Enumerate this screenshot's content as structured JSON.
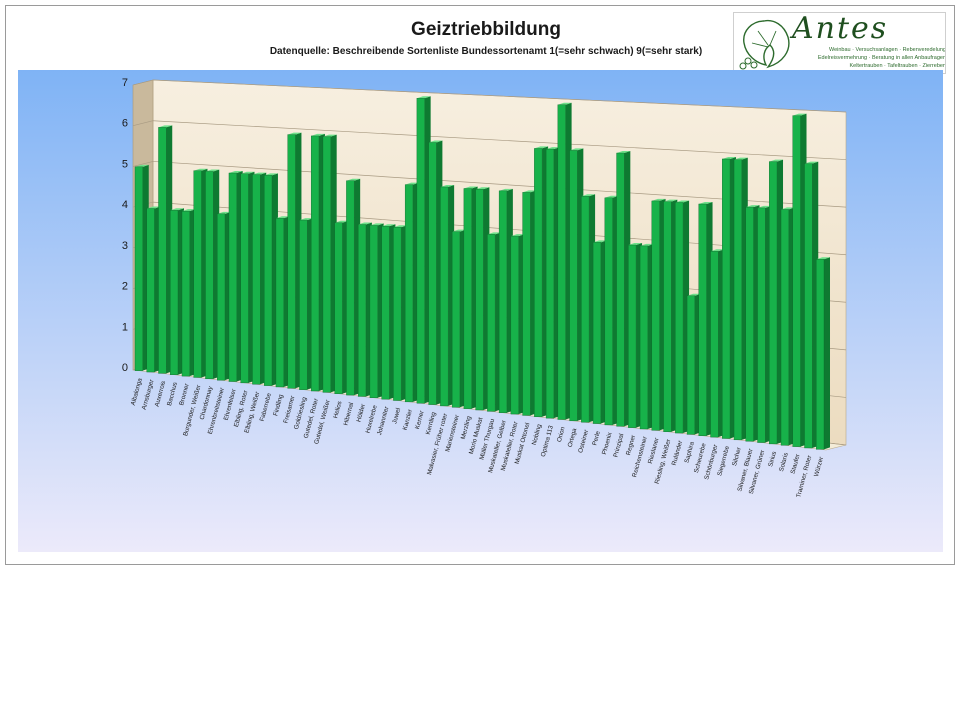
{
  "title": "Geiztriebbildung",
  "subtitle": "Datenquelle: Beschreibende Sortenliste Bundessortenamt 1(=sehr schwach) 9(=sehr stark)",
  "logo": {
    "name": "Antes",
    "line1": "Weinbau · Versuchsanlagen · Rebenveredelung",
    "line2": "Edelreisvermehrung · Beratung in allen Anbaufragen",
    "line3": "Keltertrauben · Tafeltrauben · Zierreben"
  },
  "colors": {
    "bar_front": "#17b24a",
    "bar_side": "#0e7a31",
    "bar_top": "#6ee08a",
    "wall": "#ecdcc0",
    "floor": "#f4ecd8",
    "bg_top": "#7fb3f5",
    "bg_bottom": "#eceafa"
  },
  "chart_data": {
    "type": "bar",
    "title": "Geiztriebbildung",
    "subtitle": "Datenquelle: Beschreibende Sortenliste Bundessortenamt 1(=sehr schwach) 9(=sehr stark)",
    "ylim": [
      0,
      7
    ],
    "yticks": [
      "0",
      "1",
      "2",
      "3",
      "4",
      "5",
      "6",
      "7"
    ],
    "grid": true,
    "legend": "none",
    "categories": [
      "Albalonga",
      "Arnsburger",
      "Auxerrois",
      "Bacchus",
      "Bronner",
      "Burgunder, Weißer",
      "Chardonnay",
      "Ehrenbreitsteiner",
      "Ehrenfelser",
      "Elbling, Roter",
      "Elbling, Weißer",
      "Faberrebe",
      "Findling",
      "Freisamer",
      "Goldriesling",
      "Gutedel, Roter",
      "Gutedel, Weißer",
      "Helios",
      "Hibernal",
      "Hölder",
      "Huxelrebe",
      "Johanniter",
      "Juwel",
      "Kanzler",
      "Kerner",
      "Kernling",
      "Malvasier, Früher roter",
      "Mariensteiner",
      "Merzling",
      "Morio Muskat",
      "Müller Thurgau",
      "Muskateller, Gelber",
      "Muskateller, Roter",
      "Muskat Ottonel",
      "Nobling",
      "Optima 113",
      "Orion",
      "Ortega",
      "Osteiner",
      "Perle",
      "Phoenix",
      "Prinzipal",
      "Regner",
      "Reichensteiner",
      "Rieslaner",
      "Riesling, Weißer",
      "Ruländer",
      "Saphira",
      "Scheurebe",
      "Schönburger",
      "Siegerrebe",
      "Silcher",
      "Silvaner, Blauer",
      "Silvaner, Grüner",
      "Sirius",
      "Solaris",
      "Staufer",
      "Traminer, Roter",
      "Würzer"
    ],
    "values": [
      5,
      4,
      6,
      4,
      4,
      5,
      5,
      4,
      5,
      5,
      5,
      5,
      4,
      6,
      4,
      6,
      6,
      4,
      5,
      4,
      4,
      4,
      4,
      5,
      7,
      6,
      5,
      4,
      5,
      5,
      4,
      5,
      4,
      5,
      6,
      6,
      7,
      6,
      5,
      4,
      5,
      6,
      4,
      4,
      5,
      5,
      5,
      3,
      5,
      4,
      6,
      6,
      5,
      5,
      6,
      5,
      7,
      6,
      4
    ]
  }
}
